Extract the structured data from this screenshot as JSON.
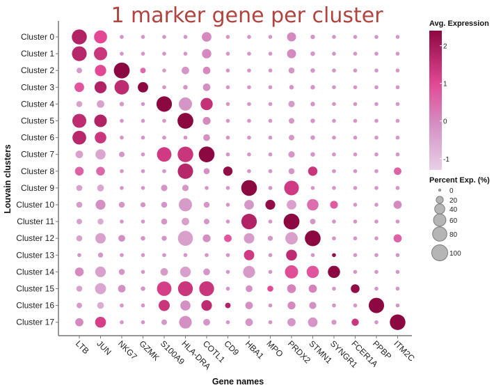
{
  "chart_data": {
    "type": "dotplot",
    "title": "1 marker gene per cluster",
    "xlabel": "Gene names",
    "ylabel": "Louvain clusters",
    "genes": [
      "LTB",
      "JUN",
      "NKG7",
      "GZMK",
      "S100A9",
      "HLA-DRA",
      "COTL1",
      "CD9",
      "HBA1",
      "MPO",
      "PRDX2",
      "STMN1",
      "SYNGR1",
      "FCER1A",
      "PPBP",
      "ITM2C"
    ],
    "clusters": [
      "Cluster 0",
      "Cluster 1",
      "Cluster 2",
      "Cluster 3",
      "Cluster 4",
      "Cluster 5",
      "Cluster 6",
      "Cluster 7",
      "Cluster 8",
      "Cluster 9",
      "Cluster 10",
      "Cluster 11",
      "Cluster 12",
      "Cluster 13",
      "Cluster 14",
      "Cluster 15",
      "Cluster 16",
      "Cluster 17"
    ],
    "color_legend": {
      "title": "Avg. Expression",
      "range": [
        -1.3,
        2.4
      ],
      "ticks": [
        -1,
        0,
        1,
        2
      ]
    },
    "size_legend": {
      "title": "Percent Exp. (%)",
      "ticks": [
        0,
        20,
        40,
        60,
        80,
        100
      ]
    },
    "avg_expression": [
      [
        1.8,
        1.0,
        -0.2,
        -0.2,
        -0.2,
        -0.2,
        0.0,
        -0.2,
        -0.2,
        -0.2,
        0.0,
        -0.2,
        -0.2,
        -0.2,
        -0.2,
        -0.2
      ],
      [
        1.7,
        1.4,
        -0.2,
        -0.2,
        -0.2,
        -0.2,
        0.0,
        -0.2,
        -0.2,
        -0.2,
        0.0,
        -0.2,
        -0.2,
        -0.2,
        -0.2,
        -0.2
      ],
      [
        -0.3,
        1.0,
        2.4,
        0.5,
        -0.3,
        -0.2,
        0.0,
        -0.2,
        -0.2,
        -0.2,
        -0.2,
        -0.2,
        -0.2,
        -0.2,
        -0.2,
        -0.2
      ],
      [
        0.8,
        1.8,
        1.6,
        2.4,
        -0.2,
        -0.2,
        -0.1,
        -0.2,
        -0.2,
        -0.2,
        -0.2,
        -0.2,
        -0.2,
        -0.2,
        -0.2,
        -0.2
      ],
      [
        -0.4,
        -0.4,
        -0.3,
        -0.2,
        2.4,
        -0.2,
        1.5,
        -0.2,
        -0.2,
        -0.2,
        -0.3,
        -0.2,
        -0.2,
        -0.2,
        -0.2,
        -0.2
      ],
      [
        1.6,
        1.8,
        -0.2,
        -0.2,
        -0.2,
        2.4,
        0.0,
        -0.2,
        -0.2,
        -0.2,
        -0.2,
        -0.2,
        -0.2,
        -0.2,
        -0.2,
        -0.2
      ],
      [
        1.7,
        1.4,
        -0.2,
        -0.2,
        -0.2,
        -0.2,
        -0.1,
        -0.2,
        -0.2,
        -0.2,
        -0.2,
        -0.2,
        -0.2,
        -0.2,
        -0.2,
        -0.2
      ],
      [
        -0.4,
        -0.5,
        -0.2,
        -0.2,
        1.3,
        1.4,
        2.4,
        -0.2,
        -0.2,
        -0.2,
        -0.2,
        -0.2,
        -0.2,
        -0.2,
        -0.2,
        -0.2
      ],
      [
        0.6,
        0.5,
        -0.2,
        -0.2,
        -0.2,
        1.7,
        -0.1,
        2.3,
        -0.2,
        -0.2,
        -0.2,
        1.4,
        -0.2,
        -0.2,
        -0.2,
        0.6
      ],
      [
        -0.4,
        -0.5,
        -0.2,
        -0.2,
        -0.2,
        -0.2,
        -0.2,
        -0.2,
        2.4,
        -0.2,
        1.3,
        -0.2,
        -0.2,
        -0.2,
        -0.2,
        -0.2
      ],
      [
        -0.3,
        -0.1,
        -0.2,
        -0.2,
        -0.2,
        -0.3,
        -0.2,
        -0.2,
        -0.2,
        2.3,
        -0.4,
        0.4,
        0.7,
        -0.2,
        -0.2,
        0.0
      ],
      [
        -0.4,
        -0.6,
        -0.2,
        -0.2,
        -0.2,
        -0.4,
        -0.2,
        -0.2,
        1.8,
        -0.2,
        2.4,
        -0.2,
        -0.2,
        -0.2,
        -0.2,
        -0.2
      ],
      [
        -0.4,
        -0.4,
        -0.1,
        -0.2,
        -0.2,
        -0.4,
        -0.1,
        0.8,
        -0.3,
        -0.2,
        -0.4,
        2.4,
        -0.2,
        -0.2,
        -0.2,
        0.6
      ],
      [
        -0.2,
        -0.2,
        -0.2,
        -0.2,
        -0.2,
        -0.2,
        -0.2,
        -0.2,
        1.3,
        -0.2,
        1.6,
        -0.2,
        2.3,
        -0.2,
        -0.2,
        -0.2
      ],
      [
        0.0,
        -0.4,
        -0.2,
        -0.2,
        -0.3,
        -0.4,
        -0.2,
        -0.2,
        -0.3,
        -0.2,
        0.9,
        0.8,
        2.4,
        -0.2,
        -0.2,
        -0.2
      ],
      [
        -0.4,
        -0.5,
        -0.1,
        -0.2,
        1.2,
        1.4,
        1.4,
        -0.2,
        -0.1,
        1.0,
        0.1,
        0.1,
        -0.2,
        2.3,
        -0.2,
        -0.2
      ],
      [
        -0.3,
        -0.6,
        -0.2,
        -0.2,
        1.4,
        -0.1,
        1.6,
        1.8,
        -0.1,
        -0.2,
        0.0,
        -0.1,
        -0.2,
        -0.2,
        2.4,
        -0.2
      ],
      [
        0.0,
        1.2,
        -0.2,
        -0.2,
        -0.2,
        -0.1,
        -0.2,
        -0.2,
        -0.2,
        -0.2,
        -0.2,
        -0.2,
        -0.2,
        1.4,
        -0.2,
        2.4
      ]
    ],
    "percent_expression": [
      [
        88,
        66,
        6,
        6,
        6,
        6,
        36,
        6,
        6,
        6,
        32,
        8,
        6,
        6,
        6,
        6
      ],
      [
        85,
        68,
        6,
        6,
        6,
        6,
        34,
        6,
        6,
        6,
        32,
        8,
        6,
        6,
        6,
        6
      ],
      [
        12,
        50,
        98,
        12,
        6,
        22,
        22,
        6,
        6,
        6,
        14,
        8,
        6,
        6,
        6,
        6
      ],
      [
        36,
        56,
        82,
        42,
        6,
        8,
        22,
        6,
        6,
        6,
        8,
        8,
        6,
        6,
        6,
        6
      ],
      [
        14,
        22,
        8,
        6,
        93,
        68,
        58,
        6,
        6,
        6,
        16,
        8,
        6,
        6,
        6,
        6
      ],
      [
        76,
        62,
        6,
        6,
        6,
        98,
        24,
        6,
        6,
        6,
        12,
        8,
        6,
        6,
        6,
        6
      ],
      [
        74,
        52,
        6,
        6,
        6,
        6,
        18,
        6,
        6,
        6,
        12,
        8,
        6,
        6,
        6,
        6
      ],
      [
        22,
        40,
        12,
        6,
        82,
        95,
        97,
        6,
        6,
        6,
        16,
        8,
        6,
        6,
        6,
        6
      ],
      [
        30,
        30,
        6,
        6,
        6,
        92,
        14,
        34,
        6,
        6,
        14,
        34,
        6,
        6,
        6,
        22
      ],
      [
        14,
        18,
        6,
        6,
        16,
        16,
        6,
        6,
        97,
        6,
        84,
        6,
        6,
        6,
        6,
        6
      ],
      [
        14,
        38,
        14,
        10,
        14,
        68,
        14,
        6,
        36,
        38,
        36,
        52,
        24,
        6,
        6,
        26
      ],
      [
        12,
        14,
        6,
        6,
        14,
        22,
        12,
        6,
        93,
        6,
        98,
        12,
        6,
        6,
        6,
        6
      ],
      [
        14,
        42,
        18,
        8,
        10,
        88,
        24,
        22,
        42,
        10,
        60,
        97,
        6,
        6,
        6,
        26
      ],
      [
        6,
        10,
        6,
        6,
        6,
        6,
        6,
        6,
        42,
        6,
        46,
        6,
        6,
        6,
        6,
        6
      ],
      [
        30,
        44,
        14,
        6,
        22,
        44,
        18,
        6,
        56,
        6,
        68,
        58,
        58,
        6,
        6,
        6
      ],
      [
        14,
        48,
        22,
        8,
        82,
        86,
        86,
        6,
        18,
        14,
        30,
        26,
        6,
        30,
        6,
        6
      ],
      [
        12,
        18,
        6,
        6,
        48,
        40,
        44,
        12,
        22,
        6,
        24,
        20,
        6,
        6,
        92,
        6
      ],
      [
        26,
        46,
        6,
        6,
        12,
        62,
        18,
        6,
        22,
        6,
        26,
        36,
        10,
        20,
        6,
        95
      ]
    ]
  }
}
